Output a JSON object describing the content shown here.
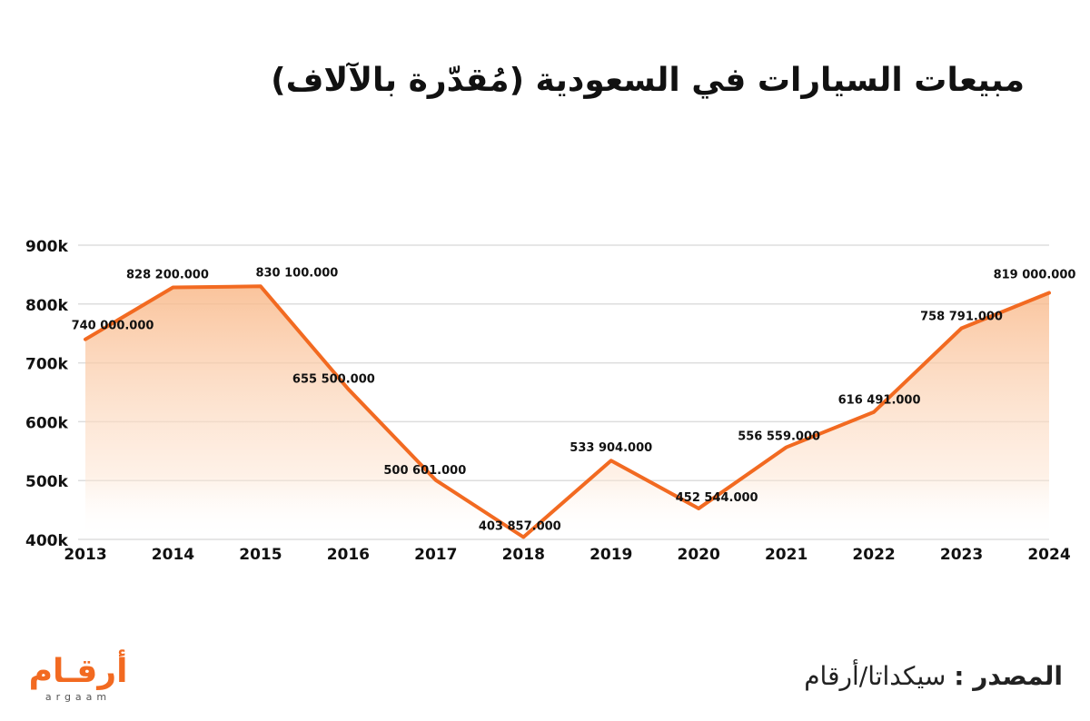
{
  "title": "مبيعات السيارات في السعودية (مُقدّرة بالآلاف)",
  "source": {
    "label": "المصدر :",
    "value": "سيكداتا/أرقام"
  },
  "logo": {
    "arabic": "أرقـام",
    "latin": "argaam"
  },
  "colors": {
    "line": "#f26a21",
    "fill_top": "#f9b98a",
    "grid": "#dddddd",
    "text": "#111111"
  },
  "chart_data": {
    "type": "area",
    "x": [
      "2013",
      "2014",
      "2015",
      "2016",
      "2017",
      "2018",
      "2019",
      "2020",
      "2021",
      "2022",
      "2023",
      "2024"
    ],
    "values": [
      740000,
      828200,
      830100,
      655500,
      500601,
      403857,
      533904,
      452544,
      556559,
      616491,
      758791,
      819000
    ],
    "data_labels": [
      "740 000.000",
      "828 200.000",
      "830 100.000",
      "655 500.000",
      "500 601.000",
      "403 857.000",
      "533 904.000",
      "452 544.000",
      "556 559.000",
      "616 491.000",
      "758 791.000",
      "819 000.000"
    ],
    "y_ticks": [
      400000,
      500000,
      600000,
      700000,
      800000,
      900000
    ],
    "y_tick_labels": [
      "400k",
      "500k",
      "600k",
      "700k",
      "800k",
      "900k"
    ],
    "ylim": [
      400000,
      900000
    ],
    "grid": true,
    "legend": "none"
  }
}
